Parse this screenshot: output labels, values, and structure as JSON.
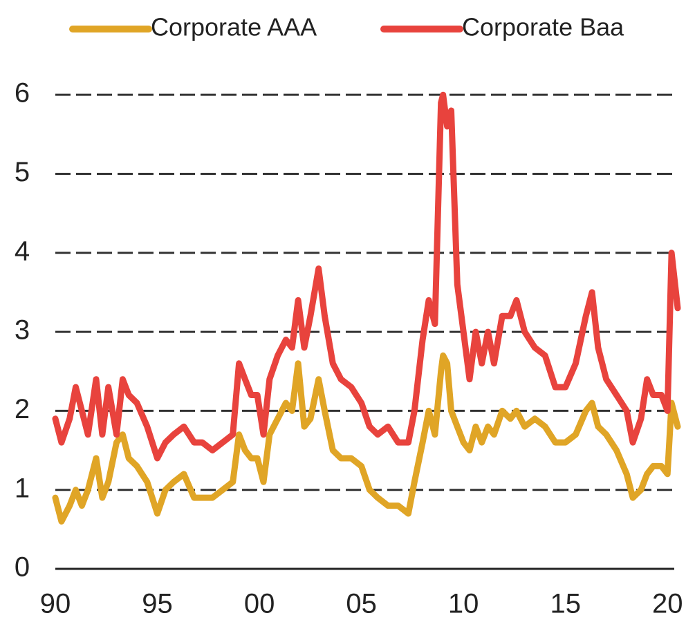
{
  "chart_data": {
    "type": "line",
    "x": [
      1990.0,
      1990.3,
      1990.7,
      1991.0,
      1991.3,
      1991.6,
      1992.0,
      1992.3,
      1992.6,
      1993.0,
      1993.3,
      1993.6,
      1994.0,
      1994.5,
      1995.0,
      1995.4,
      1995.8,
      1996.3,
      1996.8,
      1997.2,
      1997.7,
      1998.2,
      1998.7,
      1999.0,
      1999.3,
      1999.6,
      1999.9,
      2000.2,
      2000.5,
      2000.9,
      2001.3,
      2001.6,
      2001.9,
      2002.2,
      2002.5,
      2002.9,
      2003.2,
      2003.6,
      2004.0,
      2004.5,
      2005.0,
      2005.4,
      2005.8,
      2006.3,
      2006.8,
      2007.3,
      2007.6,
      2008.0,
      2008.3,
      2008.6,
      2008.9,
      2009.0,
      2009.2,
      2009.4,
      2009.7,
      2010.0,
      2010.3,
      2010.6,
      2010.9,
      2011.2,
      2011.5,
      2011.9,
      2012.3,
      2012.6,
      2013.0,
      2013.5,
      2014.0,
      2014.5,
      2015.0,
      2015.5,
      2016.0,
      2016.3,
      2016.6,
      2017.0,
      2017.5,
      2018.0,
      2018.3,
      2018.7,
      2019.0,
      2019.3,
      2019.7,
      2020.0,
      2020.2,
      2020.5
    ],
    "series": [
      {
        "name": "Corporate AAA",
        "color": "#e0a526",
        "values": [
          0.9,
          0.6,
          0.8,
          1.0,
          0.8,
          1.0,
          1.4,
          0.9,
          1.1,
          1.6,
          1.7,
          1.4,
          1.3,
          1.1,
          0.7,
          1.0,
          1.1,
          1.2,
          0.9,
          0.9,
          0.9,
          1.0,
          1.1,
          1.7,
          1.5,
          1.4,
          1.4,
          1.1,
          1.7,
          1.9,
          2.1,
          2.0,
          2.6,
          1.8,
          1.9,
          2.4,
          2.0,
          1.5,
          1.4,
          1.4,
          1.3,
          1.0,
          0.9,
          0.8,
          0.8,
          0.7,
          1.1,
          1.6,
          2.0,
          1.7,
          2.5,
          2.7,
          2.6,
          2.0,
          1.8,
          1.6,
          1.5,
          1.8,
          1.6,
          1.8,
          1.7,
          2.0,
          1.9,
          2.0,
          1.8,
          1.9,
          1.8,
          1.6,
          1.6,
          1.7,
          2.0,
          2.1,
          1.8,
          1.7,
          1.5,
          1.2,
          0.9,
          1.0,
          1.2,
          1.3,
          1.3,
          1.2,
          2.1,
          1.8
        ]
      },
      {
        "name": "Corporate Baa",
        "color": "#e8433d",
        "values": [
          1.9,
          1.6,
          1.9,
          2.3,
          2.0,
          1.7,
          2.4,
          1.7,
          2.3,
          1.7,
          2.4,
          2.2,
          2.1,
          1.8,
          1.4,
          1.6,
          1.7,
          1.8,
          1.6,
          1.6,
          1.5,
          1.6,
          1.7,
          2.6,
          2.4,
          2.2,
          2.2,
          1.7,
          2.4,
          2.7,
          2.9,
          2.8,
          3.4,
          2.8,
          3.2,
          3.8,
          3.2,
          2.6,
          2.4,
          2.3,
          2.1,
          1.8,
          1.7,
          1.8,
          1.6,
          1.6,
          2.0,
          2.9,
          3.4,
          3.1,
          5.9,
          6.0,
          5.6,
          5.8,
          3.6,
          3.0,
          2.4,
          3.0,
          2.6,
          3.0,
          2.6,
          3.2,
          3.2,
          3.4,
          3.0,
          2.8,
          2.7,
          2.3,
          2.3,
          2.6,
          3.2,
          3.5,
          2.8,
          2.4,
          2.2,
          2.0,
          1.6,
          1.9,
          2.4,
          2.2,
          2.2,
          2.0,
          4.0,
          3.3
        ]
      }
    ],
    "xlim": [
      1990,
      2020.5
    ],
    "xticks": [
      {
        "value": 1990,
        "label": "90"
      },
      {
        "value": 1995,
        "label": "95"
      },
      {
        "value": 2000,
        "label": "00"
      },
      {
        "value": 2005,
        "label": "05"
      },
      {
        "value": 2010,
        "label": "10"
      },
      {
        "value": 2015,
        "label": "15"
      },
      {
        "value": 2020,
        "label": "20"
      }
    ],
    "ylim": [
      0,
      6.5
    ],
    "yticks": [
      0,
      1,
      2,
      3,
      4,
      5,
      6
    ],
    "grid": true,
    "legend": "top"
  }
}
